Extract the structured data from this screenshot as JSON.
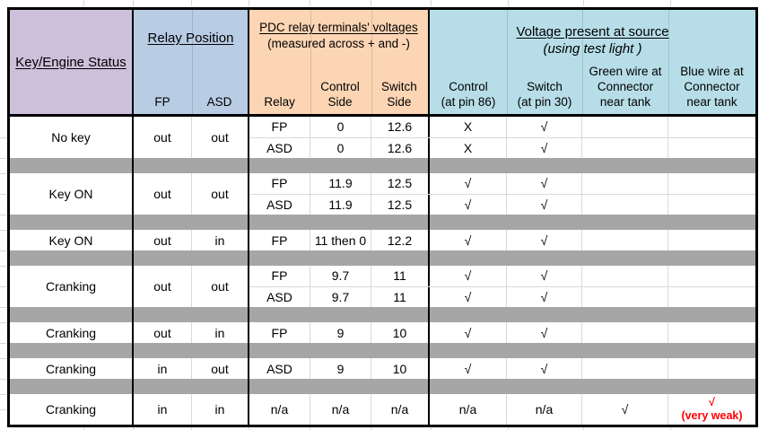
{
  "header": {
    "status": {
      "title": "Key/Engine Status"
    },
    "relay_position": {
      "title": "Relay Position",
      "cols": [
        "FP",
        "ASD"
      ]
    },
    "pdc_voltages": {
      "title": "PDC relay terminals' voltages",
      "subtitle": "(measured across + and -)",
      "cols": [
        "Relay",
        "Control\nSide",
        "Switch\nSide"
      ]
    },
    "source_voltage": {
      "title": "Voltage present at source",
      "subtitle": "(using test light )",
      "cols": [
        "Control\n(at pin 86)",
        "Switch\n(at pin 30)",
        "Green wire at\nConnector\nnear tank",
        "Blue wire at\nConnector\nnear tank"
      ]
    }
  },
  "rows": [
    {
      "type": "data",
      "status": "No key",
      "fp": "out",
      "asd": "out",
      "entries": [
        {
          "relay": "FP",
          "control_side": "0",
          "switch_side": "12.6",
          "control": "X",
          "switch": "√",
          "green": "",
          "blue": ""
        },
        {
          "relay": "ASD",
          "control_side": "0",
          "switch_side": "12.6",
          "control": "X",
          "switch": "√",
          "green": "",
          "blue": ""
        }
      ]
    },
    {
      "type": "separator"
    },
    {
      "type": "data",
      "status": "Key ON",
      "fp": "out",
      "asd": "out",
      "entries": [
        {
          "relay": "FP",
          "control_side": "11.9",
          "switch_side": "12.5",
          "control": "√",
          "switch": "√",
          "green": "",
          "blue": ""
        },
        {
          "relay": "ASD",
          "control_side": "11.9",
          "switch_side": "12.5",
          "control": "√",
          "switch": "√",
          "green": "",
          "blue": ""
        }
      ]
    },
    {
      "type": "separator"
    },
    {
      "type": "data",
      "status": "Key ON",
      "fp": "out",
      "asd": "in",
      "entries": [
        {
          "relay": "FP",
          "control_side": "11 then 0",
          "switch_side": "12.2",
          "control": "√",
          "switch": "√",
          "green": "",
          "blue": ""
        }
      ]
    },
    {
      "type": "separator"
    },
    {
      "type": "data",
      "status": "Cranking",
      "fp": "out",
      "asd": "out",
      "entries": [
        {
          "relay": "FP",
          "control_side": "9.7",
          "switch_side": "11",
          "control": "√",
          "switch": "√",
          "green": "",
          "blue": ""
        },
        {
          "relay": "ASD",
          "control_side": "9.7",
          "switch_side": "11",
          "control": "√",
          "switch": "√",
          "green": "",
          "blue": ""
        }
      ]
    },
    {
      "type": "separator"
    },
    {
      "type": "data",
      "status": "Cranking",
      "fp": "out",
      "asd": "in",
      "entries": [
        {
          "relay": "FP",
          "control_side": "9",
          "switch_side": "10",
          "control": "√",
          "switch": "√",
          "green": "",
          "blue": ""
        }
      ]
    },
    {
      "type": "separator"
    },
    {
      "type": "data",
      "status": "Cranking",
      "fp": "in",
      "asd": "out",
      "entries": [
        {
          "relay": "ASD",
          "control_side": "9",
          "switch_side": "10",
          "control": "√",
          "switch": "√",
          "green": "",
          "blue": ""
        }
      ]
    },
    {
      "type": "separator"
    },
    {
      "type": "data",
      "status": "Cranking",
      "fp": "in",
      "asd": "in",
      "tall": true,
      "entries": [
        {
          "relay": "n/a",
          "control_side": "n/a",
          "switch_side": "n/a",
          "control": "n/a",
          "switch": "n/a",
          "green": "√",
          "blue": "√\n(very weak)",
          "blue_warning": true
        }
      ]
    }
  ],
  "colors": {
    "status_header_bg": "#CCC0DA",
    "relay_header_bg": "#B8CCE4",
    "pdc_header_bg": "#FCD5B4",
    "source_header_bg": "#B7DEE8",
    "separator_bg": "#A6A6A6",
    "gridline": "#D9D9D9",
    "warning_text": "#FF0000"
  }
}
